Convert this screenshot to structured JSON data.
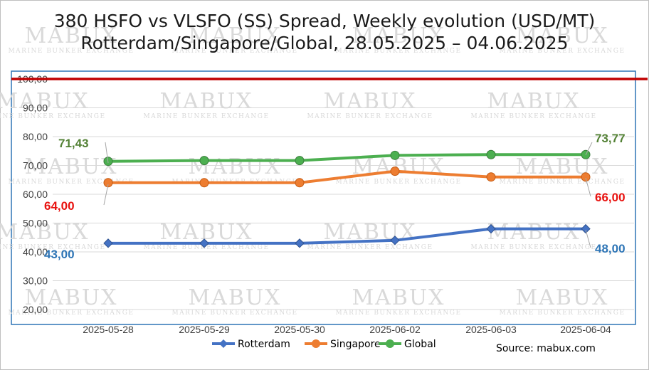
{
  "chart_data": {
    "type": "line",
    "title": [
      "380 HSFO vs VLSFO (SS) Spread, Weekly evolution (USD/MT)",
      "Rotterdam/Singapore/Global, 28.05.2025 – 04.06.2025"
    ],
    "categories": [
      "2025-05-28",
      "2025-05-29",
      "2025-05-30",
      "2025-06-02",
      "2025-06-03",
      "2025-06-04"
    ],
    "series": [
      {
        "name": "Rotterdam",
        "color": "#4472c4",
        "marker": "diamond",
        "values": [
          43,
          43,
          43,
          44,
          48,
          48
        ],
        "label_first": "43,00",
        "label_last": "48,00",
        "label_color": "#2e75b6"
      },
      {
        "name": "Singapore",
        "color": "#ed7d31",
        "marker": "circle",
        "values": [
          64,
          64,
          64,
          68,
          66,
          66
        ],
        "label_first": "64,00",
        "label_last": "66,00",
        "label_color": "#e8120f"
      },
      {
        "name": "Global",
        "color": "#4caf50",
        "marker": "circle",
        "values": [
          71.43,
          71.7,
          71.7,
          73.5,
          73.77,
          73.77
        ],
        "label_first": "71,43",
        "label_last": "73,77",
        "label_color": "#538135"
      }
    ],
    "y_ticks": [
      "20,00",
      "30,00",
      "40,00",
      "50,00",
      "60,00",
      "70,00",
      "80,00",
      "90,00",
      "100,00"
    ],
    "ylim": [
      20,
      100
    ],
    "reference_line": {
      "value": 100,
      "color": "#c00000"
    },
    "grid": true,
    "legend_position": "bottom"
  },
  "source": "Source: mabux.com",
  "watermark": {
    "brand": "MABUX",
    "tagline": "Marine Bunker Exchange"
  }
}
